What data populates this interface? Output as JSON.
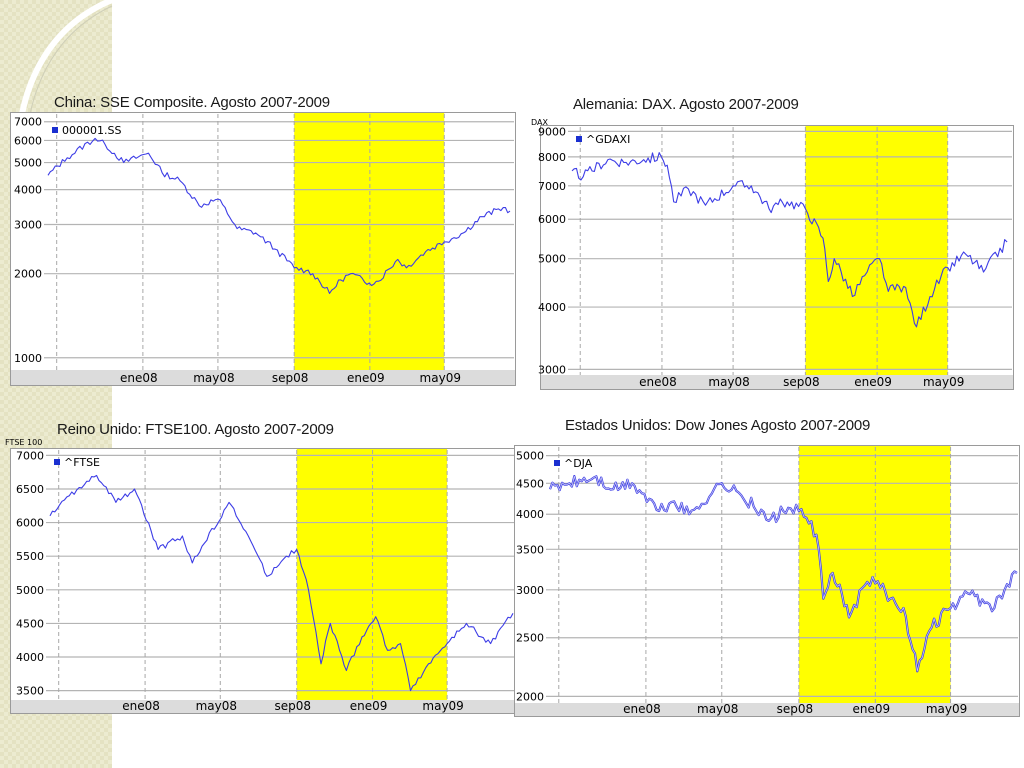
{
  "slide": {
    "background": "#ffffff",
    "highlight_color": "#ffff00",
    "line_color": "#3d3de6"
  },
  "chart_data": [
    {
      "id": "sse",
      "type": "line",
      "title": "China: SSE Composite. Agosto 2007-2009",
      "legend": "000001.SS",
      "legend_position": "top-left",
      "y_axis_title": "",
      "log_scale": true,
      "ylim": [
        950,
        7100
      ],
      "yticks": [
        {
          "v": 7000,
          "label": "7000"
        },
        {
          "v": 6000,
          "label": "6000"
        },
        {
          "v": 5000,
          "label": "5000"
        },
        {
          "v": 4000,
          "label": "4000"
        },
        {
          "v": 3000,
          "label": "3000"
        },
        {
          "v": 2000,
          "label": "2000"
        },
        {
          "v": 1000,
          "label": "1000"
        }
      ],
      "xlim": [
        "2007-08-01",
        "2009-08-15"
      ],
      "xticks": [
        {
          "date": "2008-01-01",
          "label": "ene08"
        },
        {
          "date": "2008-05-01",
          "label": "may08"
        },
        {
          "date": "2008-09-01",
          "label": "sep08"
        },
        {
          "date": "2009-01-01",
          "label": "ene09"
        },
        {
          "date": "2009-05-01",
          "label": "may09"
        }
      ],
      "shaded_period": [
        "2008-09-01",
        "2009-05-01"
      ],
      "grid": true,
      "series": [
        {
          "values": [
            [
              "2007-08-01",
              4500
            ],
            [
              "2007-09-01",
              5200
            ],
            [
              "2007-10-16",
              6100
            ],
            [
              "2007-11-01",
              5800
            ],
            [
              "2007-12-01",
              5000
            ],
            [
              "2008-01-10",
              5400
            ],
            [
              "2008-02-01",
              4600
            ],
            [
              "2008-03-01",
              4300
            ],
            [
              "2008-04-01",
              3500
            ],
            [
              "2008-05-01",
              3700
            ],
            [
              "2008-06-01",
              2900
            ],
            [
              "2008-07-01",
              2800
            ],
            [
              "2008-08-01",
              2450
            ],
            [
              "2008-09-01",
              2100
            ],
            [
              "2008-09-20",
              2050
            ],
            [
              "2008-10-01",
              2000
            ],
            [
              "2008-10-28",
              1700
            ],
            [
              "2008-11-15",
              1900
            ],
            [
              "2008-12-01",
              2000
            ],
            [
              "2008-12-31",
              1850
            ],
            [
              "2009-01-15",
              1880
            ],
            [
              "2009-02-15",
              2250
            ],
            [
              "2009-03-01",
              2100
            ],
            [
              "2009-04-01",
              2400
            ],
            [
              "2009-05-01",
              2600
            ],
            [
              "2009-06-01",
              2800
            ],
            [
              "2009-07-01",
              3200
            ],
            [
              "2009-08-04",
              3450
            ],
            [
              "2009-08-15",
              3350
            ]
          ]
        }
      ]
    },
    {
      "id": "dax",
      "type": "line",
      "title": "Alemania: DAX. Agosto 2007-2009",
      "legend": "^GDAXI",
      "legend_position": "top-left",
      "y_axis_title": "DAX",
      "log_scale": true,
      "ylim": [
        2950,
        9100
      ],
      "yticks": [
        {
          "v": 9000,
          "label": "9000"
        },
        {
          "v": 8000,
          "label": "8000"
        },
        {
          "v": 7000,
          "label": "7000"
        },
        {
          "v": 6000,
          "label": "6000"
        },
        {
          "v": 5000,
          "label": "5000"
        },
        {
          "v": 4000,
          "label": "4000"
        },
        {
          "v": 3000,
          "label": "3000"
        }
      ],
      "xlim": [
        "2007-08-01",
        "2009-08-15"
      ],
      "xticks": [
        {
          "date": "2008-01-01",
          "label": "ene08"
        },
        {
          "date": "2008-05-01",
          "label": "may08"
        },
        {
          "date": "2008-09-01",
          "label": "sep08"
        },
        {
          "date": "2009-01-01",
          "label": "ene09"
        },
        {
          "date": "2009-05-01",
          "label": "may09"
        }
      ],
      "shaded_period": [
        "2008-09-01",
        "2009-05-01"
      ],
      "grid": true,
      "series": [
        {
          "values": [
            [
              "2007-08-01",
              7500
            ],
            [
              "2007-08-20",
              7300
            ],
            [
              "2007-10-01",
              7900
            ],
            [
              "2007-11-01",
              7800
            ],
            [
              "2007-12-01",
              7900
            ],
            [
              "2007-12-31",
              8000
            ],
            [
              "2008-01-10",
              7700
            ],
            [
              "2008-01-21",
              6500
            ],
            [
              "2008-02-15",
              6900
            ],
            [
              "2008-03-15",
              6400
            ],
            [
              "2008-05-01",
              7000
            ],
            [
              "2008-06-01",
              7000
            ],
            [
              "2008-07-01",
              6300
            ],
            [
              "2008-08-01",
              6500
            ],
            [
              "2008-09-01",
              6300
            ],
            [
              "2008-10-01",
              5500
            ],
            [
              "2008-10-10",
              4500
            ],
            [
              "2008-10-20",
              5000
            ],
            [
              "2008-11-20",
              4200
            ],
            [
              "2008-12-15",
              4700
            ],
            [
              "2009-01-05",
              5000
            ],
            [
              "2009-01-20",
              4300
            ],
            [
              "2009-02-15",
              4400
            ],
            [
              "2009-03-09",
              3650
            ],
            [
              "2009-04-01",
              4200
            ],
            [
              "2009-05-01",
              4800
            ],
            [
              "2009-06-01",
              5100
            ],
            [
              "2009-07-01",
              4700
            ],
            [
              "2009-08-10",
              5400
            ]
          ]
        }
      ]
    },
    {
      "id": "ftse",
      "type": "line",
      "title": "Reino Unido: FTSE100. Agosto 2007-2009",
      "legend": "^FTSE",
      "legend_position": "top-left",
      "y_axis_title": "FTSE 100",
      "log_scale": false,
      "ylim": [
        3450,
        7050
      ],
      "yticks": [
        {
          "v": 7000,
          "label": "7000"
        },
        {
          "v": 6500,
          "label": "6500"
        },
        {
          "v": 6000,
          "label": "6000"
        },
        {
          "v": 5500,
          "label": "5500"
        },
        {
          "v": 5000,
          "label": "5000"
        },
        {
          "v": 4500,
          "label": "4500"
        },
        {
          "v": 4000,
          "label": "4000"
        },
        {
          "v": 3500,
          "label": "3500"
        }
      ],
      "xlim": [
        "2007-08-01",
        "2009-08-15"
      ],
      "xticks": [
        {
          "date": "2008-01-01",
          "label": "ene08"
        },
        {
          "date": "2008-05-01",
          "label": "may08"
        },
        {
          "date": "2008-09-01",
          "label": "sep08"
        },
        {
          "date": "2009-01-01",
          "label": "ene09"
        },
        {
          "date": "2009-05-01",
          "label": "may09"
        }
      ],
      "shaded_period": [
        "2008-09-01",
        "2009-05-01"
      ],
      "grid": true,
      "series": [
        {
          "values": [
            [
              "2007-08-01",
              6100
            ],
            [
              "2007-09-01",
              6400
            ],
            [
              "2007-10-15",
              6700
            ],
            [
              "2007-11-15",
              6300
            ],
            [
              "2007-12-15",
              6500
            ],
            [
              "2008-01-22",
              5600
            ],
            [
              "2008-03-01",
              5800
            ],
            [
              "2008-03-17",
              5400
            ],
            [
              "2008-05-15",
              6300
            ],
            [
              "2008-06-15",
              5800
            ],
            [
              "2008-07-15",
              5200
            ],
            [
              "2008-08-15",
              5500
            ],
            [
              "2008-09-01",
              5600
            ],
            [
              "2008-09-20",
              5000
            ],
            [
              "2008-10-10",
              3900
            ],
            [
              "2008-10-25",
              4500
            ],
            [
              "2008-11-20",
              3800
            ],
            [
              "2008-12-15",
              4300
            ],
            [
              "2009-01-06",
              4600
            ],
            [
              "2009-01-25",
              4100
            ],
            [
              "2009-02-15",
              4200
            ],
            [
              "2009-03-03",
              3500
            ],
            [
              "2009-04-01",
              3900
            ],
            [
              "2009-05-01",
              4200
            ],
            [
              "2009-06-01",
              4500
            ],
            [
              "2009-07-10",
              4200
            ],
            [
              "2009-08-15",
              4650
            ]
          ]
        }
      ]
    },
    {
      "id": "dja",
      "type": "line",
      "title": "Estados Unidos: Dow Jones Agosto 2007-2009",
      "legend": "^DJA",
      "legend_position": "top-left",
      "y_axis_title": "",
      "log_scale": true,
      "ylim": [
        1980,
        5050
      ],
      "yticks": [
        {
          "v": 5000,
          "label": "5000"
        },
        {
          "v": 4500,
          "label": "4500"
        },
        {
          "v": 4000,
          "label": "4000"
        },
        {
          "v": 3500,
          "label": "3500"
        },
        {
          "v": 3000,
          "label": "3000"
        },
        {
          "v": 2500,
          "label": "2500"
        },
        {
          "v": 2000,
          "label": "2000"
        }
      ],
      "xlim": [
        "2007-08-01",
        "2009-08-15"
      ],
      "xticks": [
        {
          "date": "2008-01-01",
          "label": "ene08"
        },
        {
          "date": "2008-05-01",
          "label": "may08"
        },
        {
          "date": "2008-09-01",
          "label": "sep08"
        },
        {
          "date": "2009-01-01",
          "label": "ene09"
        },
        {
          "date": "2009-05-01",
          "label": "may09"
        }
      ],
      "shaded_period": [
        "2008-09-01",
        "2009-05-01"
      ],
      "grid": true,
      "series": [
        {
          "values": [
            [
              "2007-08-01",
              4400
            ],
            [
              "2007-09-01",
              4500
            ],
            [
              "2007-10-10",
              4600
            ],
            [
              "2007-11-10",
              4400
            ],
            [
              "2007-12-10",
              4500
            ],
            [
              "2008-01-22",
              4050
            ],
            [
              "2008-02-15",
              4200
            ],
            [
              "2008-03-10",
              4000
            ],
            [
              "2008-05-01",
              4500
            ],
            [
              "2008-06-01",
              4300
            ],
            [
              "2008-07-15",
              3900
            ],
            [
              "2008-08-15",
              4100
            ],
            [
              "2008-09-01",
              4050
            ],
            [
              "2008-09-29",
              3700
            ],
            [
              "2008-10-10",
              2900
            ],
            [
              "2008-10-25",
              3200
            ],
            [
              "2008-11-20",
              2700
            ],
            [
              "2008-12-15",
              3050
            ],
            [
              "2009-01-05",
              3100
            ],
            [
              "2009-01-25",
              2900
            ],
            [
              "2009-02-15",
              2800
            ],
            [
              "2009-03-09",
              2200
            ],
            [
              "2009-04-01",
              2600
            ],
            [
              "2009-05-01",
              2800
            ],
            [
              "2009-06-01",
              2950
            ],
            [
              "2009-07-10",
              2800
            ],
            [
              "2009-08-15",
              3200
            ]
          ]
        }
      ]
    }
  ]
}
